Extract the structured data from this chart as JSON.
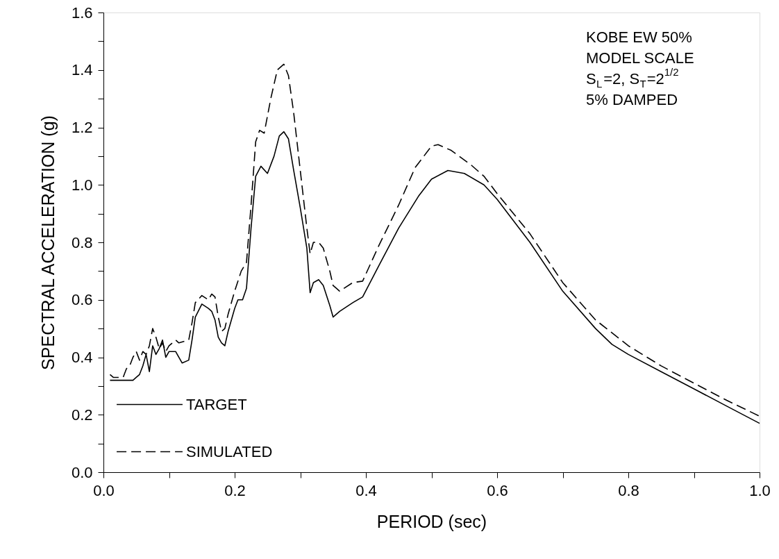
{
  "chart_data": {
    "type": "line",
    "xlabel": "PERIOD (sec)",
    "ylabel": "SPECTRAL ACCELERATION (g)",
    "xlim": [
      0,
      1
    ],
    "ylim": [
      0,
      1.6
    ],
    "xticks": [
      {
        "value": 0,
        "label": "0.0"
      },
      {
        "value": 0.1,
        "label": null
      },
      0.2,
      {
        "value": 0.3,
        "label": null
      },
      0.4,
      {
        "value": 0.5,
        "label": null
      },
      0.6,
      {
        "value": 0.7,
        "label": null
      },
      0.8,
      {
        "value": 0.9,
        "label": null
      },
      {
        "value": 1,
        "label": "1.0"
      }
    ],
    "yticks": [
      {
        "value": 0,
        "label": "0.0"
      },
      {
        "value": 0.1,
        "label": null
      },
      0.2,
      {
        "value": 0.3,
        "label": null
      },
      0.4,
      {
        "value": 0.5,
        "label": null
      },
      0.6,
      {
        "value": 0.7,
        "label": null
      },
      0.8,
      {
        "value": 0.9,
        "label": null
      },
      {
        "value": 1,
        "label": "1.0"
      },
      {
        "value": 1.1,
        "label": null
      },
      1.2,
      {
        "value": 1.3,
        "label": null
      },
      1.4,
      {
        "value": 1.5,
        "label": null
      },
      1.6
    ],
    "grid": false,
    "legend": "bottom left",
    "marker": "none",
    "annotations": [
      "KOBE EW 50%",
      "MODEL SCALE",
      "S$_{L}$=2, S$_{T}$=2$^{1/2}$",
      "5% DAMPED"
    ],
    "series": [
      {
        "name": "TARGET",
        "color": "#000000",
        "line_style": "solid",
        "x": [
          0.01,
          0.03,
          0.045,
          0.05,
          0.055,
          0.06,
          0.065,
          0.07,
          0.075,
          0.08,
          0.085,
          0.09,
          0.095,
          0.1,
          0.11,
          0.12,
          0.13,
          0.135,
          0.14,
          0.15,
          0.16,
          0.165,
          0.17,
          0.175,
          0.18,
          0.185,
          0.19,
          0.2,
          0.205,
          0.212,
          0.218,
          0.225,
          0.232,
          0.24,
          0.25,
          0.26,
          0.268,
          0.275,
          0.282,
          0.29,
          0.3,
          0.31,
          0.315,
          0.32,
          0.328,
          0.335,
          0.345,
          0.35,
          0.36,
          0.38,
          0.395,
          0.42,
          0.45,
          0.48,
          0.5,
          0.525,
          0.55,
          0.58,
          0.6,
          0.65,
          0.7,
          0.75,
          0.775,
          0.8,
          0.85,
          0.9,
          0.95,
          1.0
        ],
        "values": [
          0.32,
          0.32,
          0.32,
          0.33,
          0.34,
          0.37,
          0.41,
          0.35,
          0.44,
          0.41,
          0.43,
          0.46,
          0.4,
          0.42,
          0.42,
          0.38,
          0.39,
          0.46,
          0.54,
          0.585,
          0.57,
          0.56,
          0.53,
          0.47,
          0.45,
          0.44,
          0.49,
          0.57,
          0.6,
          0.6,
          0.64,
          0.85,
          1.03,
          1.065,
          1.04,
          1.1,
          1.17,
          1.185,
          1.16,
          1.05,
          0.92,
          0.78,
          0.625,
          0.66,
          0.67,
          0.65,
          0.58,
          0.54,
          0.56,
          0.59,
          0.61,
          0.72,
          0.85,
          0.96,
          1.02,
          1.05,
          1.04,
          1.0,
          0.95,
          0.8,
          0.63,
          0.5,
          0.445,
          0.41,
          0.35,
          0.29,
          0.23,
          0.17
        ]
      },
      {
        "name": "SIMULATED",
        "color": "#000000",
        "line_style": "dashed",
        "x": [
          0.01,
          0.015,
          0.02,
          0.03,
          0.035,
          0.04,
          0.045,
          0.05,
          0.055,
          0.06,
          0.065,
          0.07,
          0.075,
          0.08,
          0.085,
          0.09,
          0.095,
          0.1,
          0.11,
          0.115,
          0.13,
          0.135,
          0.14,
          0.15,
          0.16,
          0.165,
          0.17,
          0.175,
          0.18,
          0.185,
          0.19,
          0.2,
          0.21,
          0.218,
          0.225,
          0.232,
          0.238,
          0.245,
          0.255,
          0.265,
          0.275,
          0.282,
          0.29,
          0.3,
          0.31,
          0.315,
          0.32,
          0.328,
          0.335,
          0.345,
          0.35,
          0.355,
          0.36,
          0.38,
          0.395,
          0.42,
          0.45,
          0.475,
          0.5,
          0.51,
          0.53,
          0.56,
          0.58,
          0.6,
          0.65,
          0.7,
          0.75,
          0.8,
          0.85,
          0.9,
          0.95,
          1.0
        ],
        "values": [
          0.34,
          0.33,
          0.33,
          0.33,
          0.36,
          0.37,
          0.4,
          0.42,
          0.39,
          0.42,
          0.41,
          0.44,
          0.5,
          0.47,
          0.43,
          0.45,
          0.42,
          0.44,
          0.46,
          0.45,
          0.46,
          0.52,
          0.59,
          0.615,
          0.6,
          0.62,
          0.61,
          0.54,
          0.49,
          0.5,
          0.55,
          0.63,
          0.7,
          0.73,
          0.93,
          1.15,
          1.19,
          1.18,
          1.3,
          1.4,
          1.42,
          1.38,
          1.25,
          1.05,
          0.85,
          0.76,
          0.8,
          0.8,
          0.78,
          0.7,
          0.65,
          0.64,
          0.63,
          0.66,
          0.665,
          0.79,
          0.93,
          1.06,
          1.135,
          1.14,
          1.12,
          1.07,
          1.03,
          0.97,
          0.83,
          0.66,
          0.53,
          0.44,
          0.37,
          0.31,
          0.25,
          0.195
        ]
      }
    ]
  }
}
